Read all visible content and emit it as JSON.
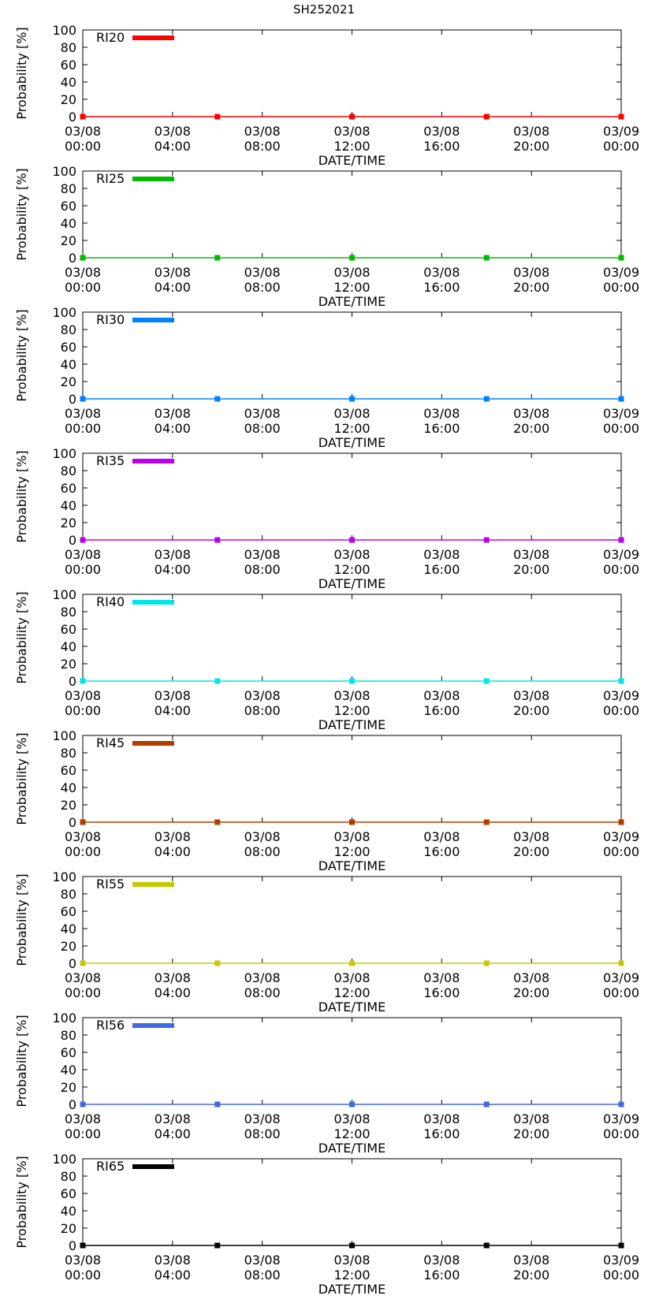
{
  "title": "SH252021",
  "chart_data": {
    "type": "line",
    "title": "SH252021",
    "xlabel": "DATE/TIME",
    "ylabel": "Probability [%]",
    "ylim": [
      0,
      100
    ],
    "yticks": [
      0,
      20,
      40,
      60,
      80,
      100
    ],
    "xlim_hours": [
      0,
      24
    ],
    "xticks": [
      {
        "hour": 0,
        "date": "03/08",
        "time": "00:00"
      },
      {
        "hour": 4,
        "date": "03/08",
        "time": "04:00"
      },
      {
        "hour": 8,
        "date": "03/08",
        "time": "08:00"
      },
      {
        "hour": 12,
        "date": "03/08",
        "time": "12:00"
      },
      {
        "hour": 16,
        "date": "03/08",
        "time": "16:00"
      },
      {
        "hour": 20,
        "date": "03/08",
        "time": "20:00"
      },
      {
        "hour": 24,
        "date": "03/09",
        "time": "00:00"
      }
    ],
    "x_hours": [
      0,
      6,
      12,
      18,
      24
    ],
    "series": [
      {
        "name": "RI20",
        "color": "#ff0000",
        "values": [
          0,
          0,
          0,
          0,
          0
        ]
      },
      {
        "name": "RI25",
        "color": "#00bb00",
        "values": [
          0,
          0,
          0,
          0,
          0
        ]
      },
      {
        "name": "RI30",
        "color": "#0080ff",
        "values": [
          0,
          0,
          0,
          0,
          0
        ]
      },
      {
        "name": "RI35",
        "color": "#bb00ee",
        "values": [
          0,
          0,
          0,
          0,
          0
        ]
      },
      {
        "name": "RI40",
        "color": "#00e6e6",
        "values": [
          0,
          0,
          0,
          0,
          0
        ]
      },
      {
        "name": "RI45",
        "color": "#b33b00",
        "values": [
          0,
          0,
          0,
          0,
          0
        ]
      },
      {
        "name": "RI55",
        "color": "#c8c800",
        "values": [
          0,
          0,
          0,
          0,
          0
        ]
      },
      {
        "name": "RI56",
        "color": "#4169e1",
        "values": [
          0,
          0,
          0,
          0,
          0
        ]
      },
      {
        "name": "RI65",
        "color": "#000000",
        "values": [
          0,
          0,
          0,
          0,
          0
        ]
      }
    ]
  }
}
